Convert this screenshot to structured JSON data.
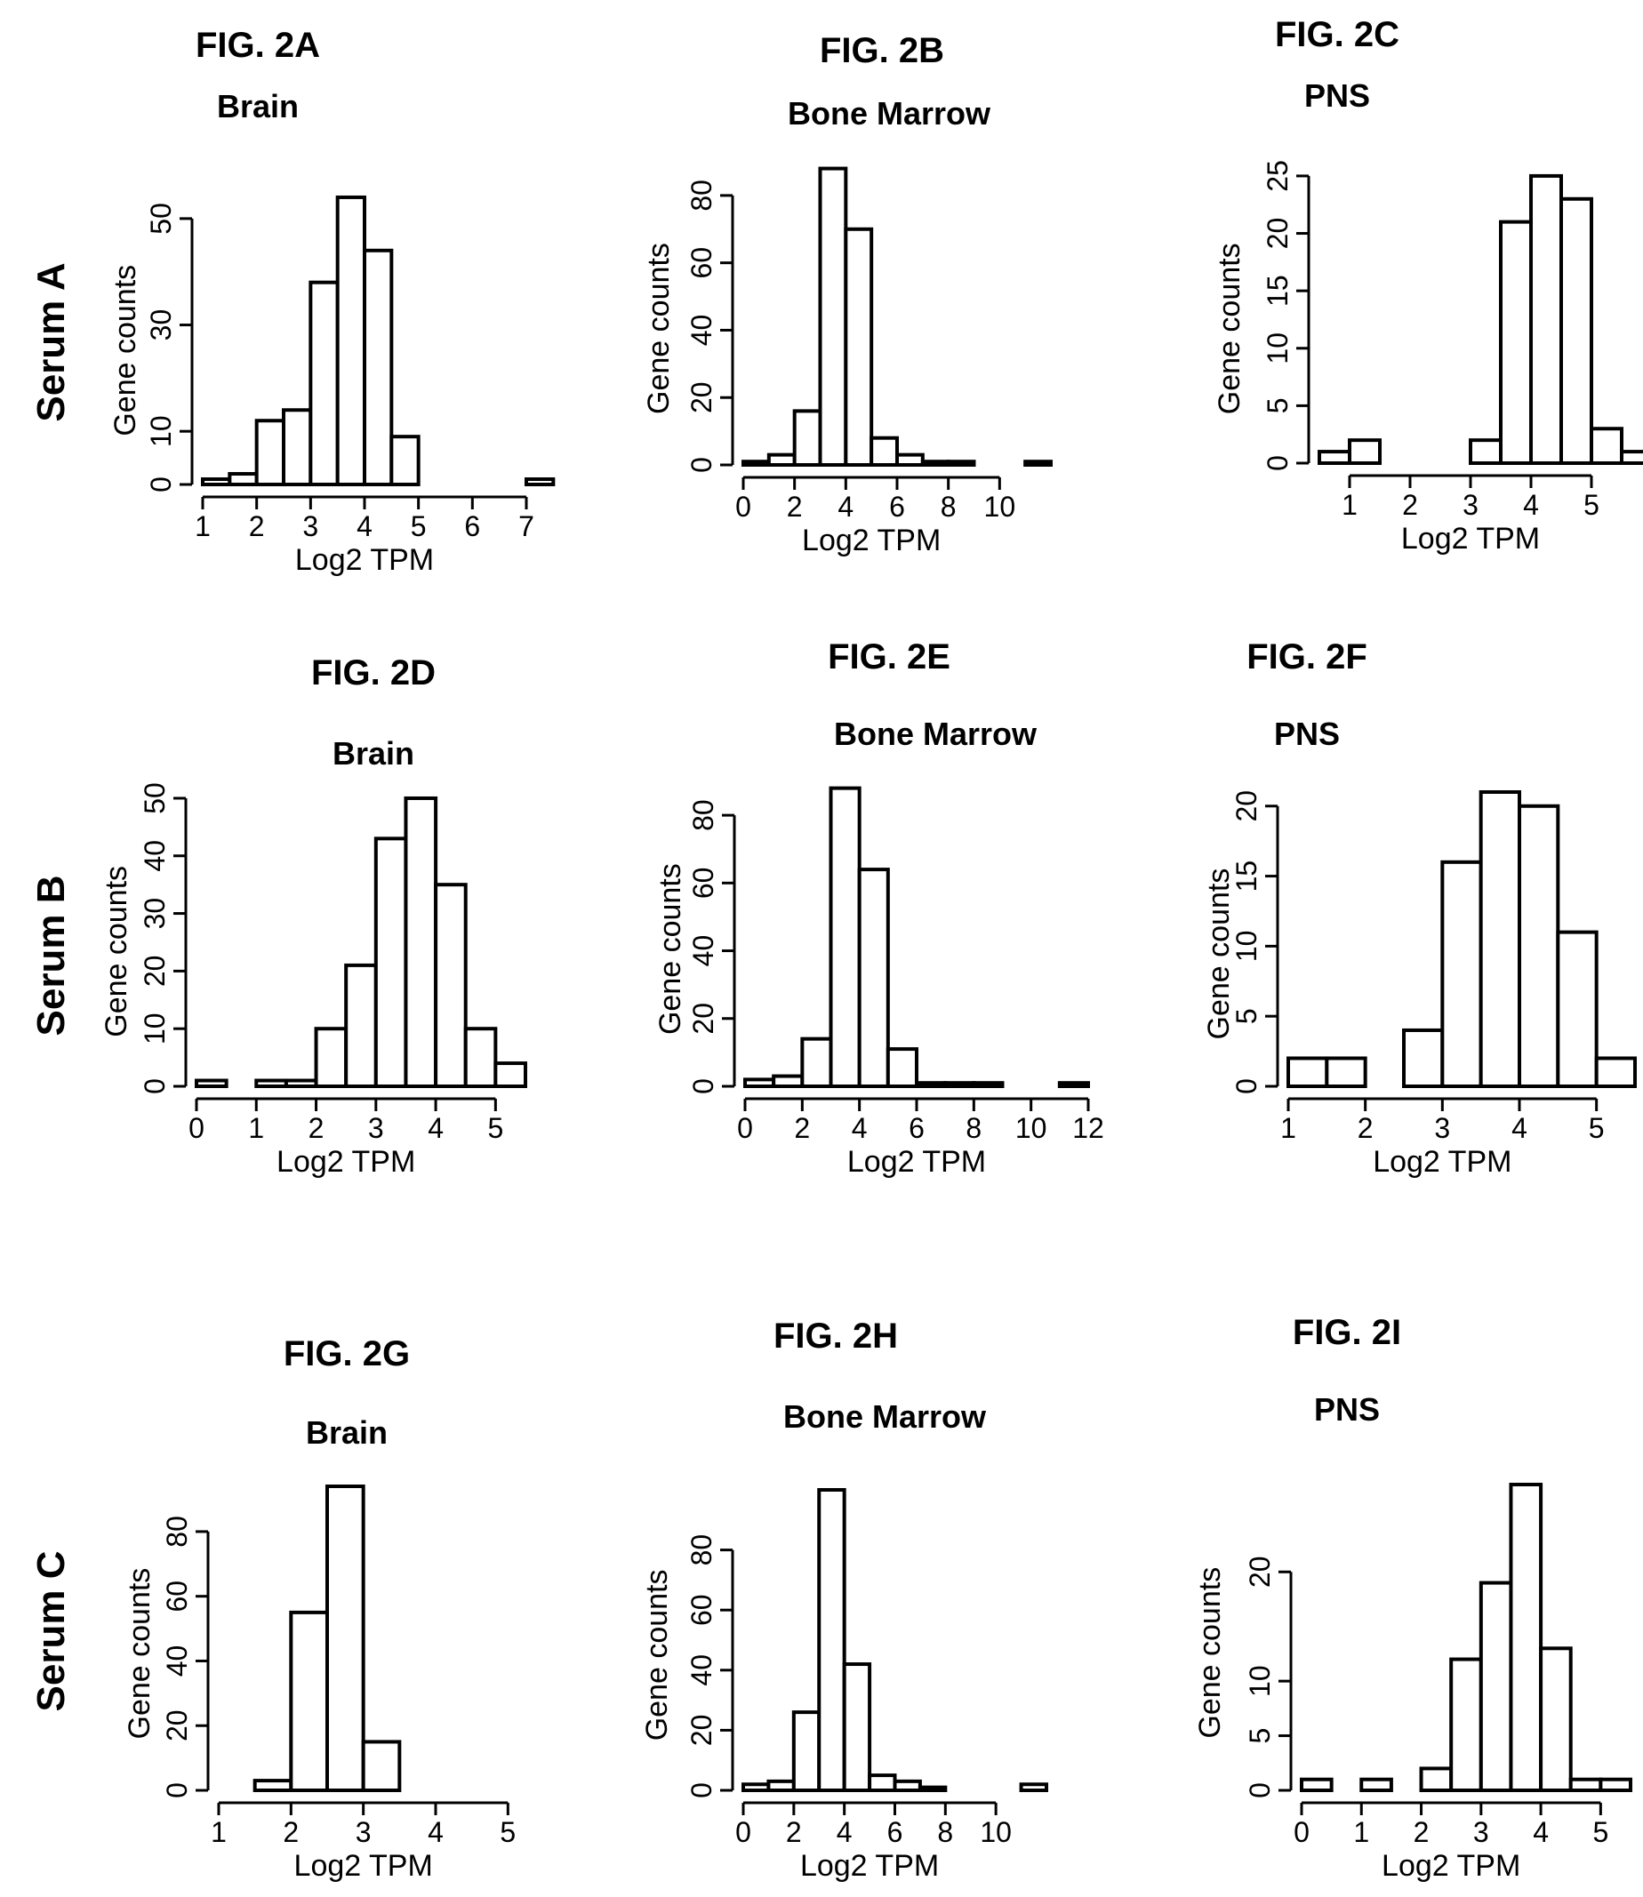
{
  "row_labels": [
    "Serum A",
    "Serum B",
    "Serum C"
  ],
  "chart_data": [
    {
      "type": "bar",
      "figure": "FIG. 2A",
      "title": "Brain",
      "row": "Serum A",
      "xlabel": "Log2 TPM",
      "ylabel": "Gene counts",
      "bin_start": 1,
      "bin_width": 0.5,
      "xlim": [
        1,
        7
      ],
      "xticks": [
        1,
        2,
        3,
        4,
        5,
        6,
        7
      ],
      "ylim": [
        0,
        56
      ],
      "yticks": [
        0,
        10,
        30,
        50
      ],
      "values": [
        1,
        2,
        12,
        14,
        38,
        54,
        44,
        9,
        0,
        0,
        0,
        0,
        1
      ]
    },
    {
      "type": "bar",
      "figure": "FIG. 2B",
      "title": "Bone Marrow",
      "row": "Serum A",
      "xlabel": "Log2 TPM",
      "ylabel": "Gene counts",
      "bin_start": 0,
      "bin_width": 1,
      "xlim": [
        0,
        12
      ],
      "xticks": [
        0,
        2,
        4,
        6,
        8,
        10
      ],
      "ylim": [
        0,
        90
      ],
      "yticks": [
        0,
        20,
        40,
        60,
        80
      ],
      "values": [
        1,
        3,
        16,
        88,
        70,
        8,
        3,
        1,
        1,
        0,
        0,
        1
      ]
    },
    {
      "type": "bar",
      "figure": "FIG. 2C",
      "title": "PNS",
      "row": "Serum A",
      "xlabel": "Log2 TPM",
      "ylabel": "Gene counts",
      "bin_start": 0.5,
      "bin_width": 0.5,
      "xlim": [
        0.5,
        5.5
      ],
      "xticks": [
        1,
        2,
        3,
        4,
        5
      ],
      "ylim": [
        0,
        26
      ],
      "yticks": [
        0,
        5,
        10,
        15,
        20,
        25
      ],
      "values": [
        1,
        2,
        0,
        0,
        0,
        2,
        21,
        25,
        23,
        3,
        1
      ]
    },
    {
      "type": "bar",
      "figure": "FIG. 2D",
      "title": "Brain",
      "row": "Serum B",
      "xlabel": "Log2 TPM",
      "ylabel": "Gene counts",
      "bin_start": 0,
      "bin_width": 0.5,
      "xlim": [
        0,
        5.5
      ],
      "xticks": [
        0,
        1,
        2,
        3,
        4,
        5
      ],
      "ylim": [
        0,
        52
      ],
      "yticks": [
        0,
        10,
        20,
        30,
        40,
        50
      ],
      "values": [
        1,
        0,
        1,
        1,
        10,
        21,
        43,
        50,
        35,
        10,
        4
      ]
    },
    {
      "type": "bar",
      "figure": "FIG. 2E",
      "title": "Bone Marrow",
      "row": "Serum B",
      "xlabel": "Log2 TPM",
      "ylabel": "Gene counts",
      "bin_start": 0,
      "bin_width": 1,
      "xlim": [
        0,
        12
      ],
      "xticks": [
        0,
        2,
        4,
        6,
        8,
        10,
        12
      ],
      "ylim": [
        0,
        90
      ],
      "yticks": [
        0,
        20,
        40,
        60,
        80
      ],
      "values": [
        2,
        3,
        14,
        88,
        64,
        11,
        1,
        1,
        1,
        0,
        0,
        1
      ]
    },
    {
      "type": "bar",
      "figure": "FIG. 2F",
      "title": "PNS",
      "row": "Serum B",
      "xlabel": "Log2 TPM",
      "ylabel": "Gene counts",
      "bin_start": 1,
      "bin_width": 0.5,
      "xlim": [
        1,
        5.5
      ],
      "xticks": [
        1,
        2,
        3,
        4,
        5
      ],
      "ylim": [
        0,
        21
      ],
      "yticks": [
        0,
        5,
        10,
        15,
        20
      ],
      "values": [
        2,
        2,
        0,
        4,
        16,
        21,
        20,
        11,
        2
      ]
    },
    {
      "type": "bar",
      "figure": "FIG. 2G",
      "title": "Brain",
      "row": "Serum C",
      "xlabel": "Log2 TPM",
      "ylabel": "Gene counts",
      "bin_start": 1,
      "bin_width": 0.5,
      "xlim": [
        1,
        5.5
      ],
      "xticks": [
        1,
        2,
        3,
        4,
        5
      ],
      "ylim": [
        0,
        94
      ],
      "yticks": [
        0,
        20,
        40,
        60,
        80
      ],
      "values": [
        0,
        3,
        55,
        94,
        15,
        0,
        0,
        0,
        0
      ]
    },
    {
      "type": "bar",
      "figure": "FIG. 2H",
      "title": "Bone Marrow",
      "row": "Serum C",
      "xlabel": "Log2 TPM",
      "ylabel": "Gene counts",
      "bin_start": 0,
      "bin_width": 1,
      "xlim": [
        0,
        12
      ],
      "xticks": [
        0,
        2,
        4,
        6,
        8,
        10
      ],
      "ylim": [
        0,
        100
      ],
      "yticks": [
        0,
        20,
        40,
        60,
        80
      ],
      "values": [
        2,
        3,
        26,
        100,
        42,
        5,
        3,
        1,
        0,
        0,
        0,
        2
      ]
    },
    {
      "type": "bar",
      "figure": "FIG. 2I",
      "title": "PNS",
      "row": "Serum C",
      "xlabel": "Log2 TPM",
      "ylabel": "Gene counts",
      "bin_start": 0,
      "bin_width": 0.5,
      "xlim": [
        0,
        5.5
      ],
      "xticks": [
        0,
        1,
        2,
        3,
        4,
        5
      ],
      "ylim": [
        0,
        28
      ],
      "yticks": [
        0,
        5,
        10,
        20
      ],
      "values": [
        1,
        0,
        1,
        0,
        2,
        12,
        19,
        28,
        13,
        1,
        1
      ]
    }
  ]
}
